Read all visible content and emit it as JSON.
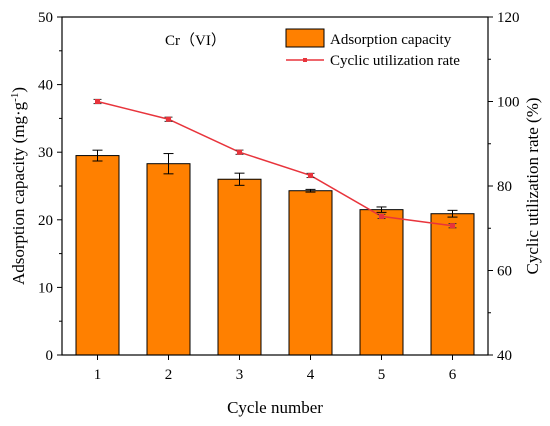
{
  "chart_data": {
    "type": "bar",
    "annotation": "Cr（VI）",
    "xlabel": "Cycle number",
    "categories": [
      "1",
      "2",
      "3",
      "4",
      "5",
      "6"
    ],
    "y_left": {
      "label": "Adsorption capacity (mg·g",
      "label_sup": "-1",
      "label_tail": ")",
      "range": [
        0,
        50
      ],
      "ticks": [
        0,
        10,
        20,
        30,
        40,
        50
      ]
    },
    "y_right": {
      "label": "Cyclic utilization rate (%)",
      "range": [
        40,
        120
      ],
      "ticks": [
        40,
        60,
        80,
        100,
        120
      ]
    },
    "series": [
      {
        "name": "Adsorption capacity",
        "type": "bar",
        "axis": "left",
        "color": "#FF8000",
        "values": [
          29.5,
          28.3,
          26.0,
          24.3,
          21.5,
          20.9
        ],
        "errors": [
          0.8,
          1.5,
          0.9,
          0.2,
          0.4,
          0.5
        ]
      },
      {
        "name": "Cyclic utilization rate",
        "type": "line",
        "axis": "right",
        "color": "#E8343C",
        "values": [
          100.0,
          95.8,
          88.0,
          82.5,
          72.8,
          70.6
        ],
        "errors": [
          0.5,
          0.5,
          0.5,
          0.5,
          0.5,
          0.5
        ]
      }
    ],
    "legend_position": "top-right",
    "grid": false
  }
}
